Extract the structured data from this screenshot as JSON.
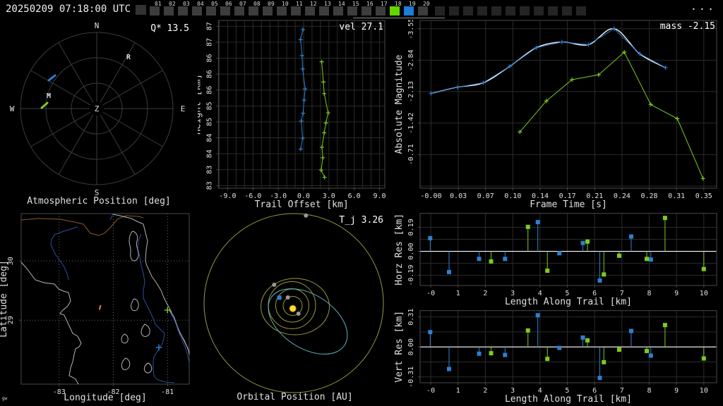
{
  "top_bar": {
    "clock": "20250209 07:18:00 UTC",
    "menu_label": "...",
    "leading_blank_squares": 1,
    "trailing_blank_squares": 11,
    "frames": [
      {
        "label": "01",
        "state": "off"
      },
      {
        "label": "02",
        "state": "off"
      },
      {
        "label": "03",
        "state": "off"
      },
      {
        "label": "04",
        "state": "off"
      },
      {
        "label": "05",
        "state": "off"
      },
      {
        "label": "06",
        "state": "off"
      },
      {
        "label": "07",
        "state": "off"
      },
      {
        "label": "08",
        "state": "off"
      },
      {
        "label": "09",
        "state": "off"
      },
      {
        "label": "10",
        "state": "off"
      },
      {
        "label": "11",
        "state": "off"
      },
      {
        "label": "12",
        "state": "off"
      },
      {
        "label": "13",
        "state": "off"
      },
      {
        "label": "14",
        "state": "off"
      },
      {
        "label": "15",
        "state": "off"
      },
      {
        "label": "16",
        "state": "off"
      },
      {
        "label": "17",
        "state": "off"
      },
      {
        "label": "18",
        "state": "green"
      },
      {
        "label": "19",
        "state": "blue"
      },
      {
        "label": "20",
        "state": "off"
      }
    ]
  },
  "colors": {
    "blue": "#2E7FD0",
    "green": "#7CCB1F",
    "white": "#FFFFFF",
    "gray_dot": "#999999",
    "frame": "#4a4a4a",
    "grid": "#2b2b2b",
    "grid_dotted": "#6a6a6a",
    "text": "#e0e0e0",
    "olive": "#9A9A3C",
    "cyan": "#5FB4C4",
    "sun": "#FFDD33",
    "coast": "#b4b4b4",
    "river": "#2D4FA0",
    "border_brown": "#8a5a28",
    "orange": "#F08040",
    "zero_line": "#FFFFFF"
  },
  "chart_data": [
    {
      "id": "atmospheric-position",
      "type": "scatter",
      "title": "Q* 13.5",
      "caption": "Atmospheric Position [deg]",
      "compass": {
        "n": "N",
        "e": "E",
        "s": "S",
        "w": "W",
        "center": "Z"
      },
      "rings": 3,
      "spokes": 12,
      "point_labels": [
        {
          "text": "R",
          "x": 182,
          "y": 56
        },
        {
          "text": "M",
          "x": 69,
          "y": 111
        }
      ],
      "tracks": [
        {
          "name": "station-track-blue",
          "color": "blue",
          "x1": 69,
          "y1": 86,
          "x2": 78,
          "y2": 79
        },
        {
          "name": "station-track-green",
          "color": "green",
          "x1": 59,
          "y1": 125,
          "x2": 67,
          "y2": 118
        }
      ]
    },
    {
      "id": "trail-offset",
      "type": "line",
      "title": "vel 27.1",
      "xlabel": "Trail Offset [km]",
      "ylabel": "Height [km]",
      "xlim": [
        -10.1,
        9.63
      ],
      "ylim": [
        87.46,
        82.83
      ],
      "minor_x_step": 1,
      "xticks": [
        -9,
        -6,
        -3,
        0,
        3,
        6,
        9
      ],
      "xtick_labels": [
        "-9.0",
        "-6.0",
        "-3.0",
        "0.0",
        "3.0",
        "6.0",
        "9.0"
      ],
      "ytick_vals": [
        87.3,
        86.86,
        86.42,
        85.98,
        85.54,
        85.1,
        84.66,
        84.22,
        83.78,
        83.34,
        82.9
      ],
      "ytick_labels": [
        "87",
        "87",
        "86",
        "86",
        "86",
        "85",
        "85",
        "84",
        "84",
        "83",
        "83"
      ],
      "series": [
        {
          "name": "site-1",
          "color": "blue",
          "marker": "plus",
          "points": [
            [
              -0.08,
              87.21
            ],
            [
              -0.36,
              86.93
            ],
            [
              -0.19,
              86.49
            ],
            [
              -0.11,
              86.12
            ],
            [
              0.19,
              85.57
            ],
            [
              0.06,
              85.26
            ],
            [
              -0.06,
              84.9
            ],
            [
              -0.28,
              84.68
            ],
            [
              -0.11,
              84.21
            ],
            [
              -0.34,
              83.91
            ]
          ]
        },
        {
          "name": "site-2",
          "color": "green",
          "marker": "plus",
          "points": [
            [
              2.15,
              86.32
            ],
            [
              2.35,
              85.76
            ],
            [
              2.45,
              85.44
            ],
            [
              2.91,
              84.91
            ],
            [
              2.65,
              84.63
            ],
            [
              2.45,
              84.36
            ],
            [
              2.18,
              83.96
            ],
            [
              2.29,
              83.67
            ],
            [
              2.09,
              83.33
            ],
            [
              2.49,
              83.13
            ]
          ]
        }
      ]
    },
    {
      "id": "light-curve",
      "type": "line",
      "title": "mass -2.15",
      "xlabel": "Frame Time [s]",
      "ylabel": "Absolute Magnitude",
      "xlim": [
        -0.014,
        0.3665
      ],
      "ylim": [
        -3.736,
        0.048
      ],
      "xticks": [
        0,
        0.035,
        0.07,
        0.105,
        0.14,
        0.175,
        0.21,
        0.245,
        0.28,
        0.315,
        0.35
      ],
      "xtick_labels": [
        "-0.00",
        "0.03",
        "0.07",
        "0.10",
        "0.14",
        "0.17",
        "0.21",
        "0.24",
        "0.28",
        "0.31",
        "0.35"
      ],
      "ytick_vals": [
        -3.55,
        -2.84,
        -2.13,
        -1.42,
        -0.71
      ],
      "ytick_labels": [
        "-3.55",
        "-2.84",
        "-2.13",
        "-1.42",
        "-0.71"
      ],
      "extra_ygrid": [
        0.0
      ],
      "series": [
        {
          "name": "site-1-smoothed",
          "color": "white",
          "marker": "none",
          "smooth": true,
          "points": [
            [
              0.0,
              -2.09
            ],
            [
              0.034,
              -2.23
            ],
            [
              0.067,
              -2.33
            ],
            [
              0.101,
              -2.7
            ],
            [
              0.135,
              -3.12
            ],
            [
              0.168,
              -3.25
            ],
            [
              0.202,
              -3.19
            ],
            [
              0.235,
              -3.55
            ],
            [
              0.268,
              -2.98
            ],
            [
              0.301,
              -2.67
            ]
          ]
        },
        {
          "name": "site-1",
          "color": "blue",
          "marker": "plus",
          "points": [
            [
              0.0,
              -2.09
            ],
            [
              0.034,
              -2.23
            ],
            [
              0.067,
              -2.33
            ],
            [
              0.101,
              -2.7
            ],
            [
              0.135,
              -3.12
            ],
            [
              0.168,
              -3.25
            ],
            [
              0.202,
              -3.19
            ],
            [
              0.235,
              -3.55
            ],
            [
              0.268,
              -2.98
            ],
            [
              0.301,
              -2.67
            ]
          ]
        },
        {
          "name": "site-2",
          "color": "green",
          "marker": "plus",
          "points": [
            [
              0.114,
              -1.22
            ],
            [
              0.148,
              -1.92
            ],
            [
              0.181,
              -2.4
            ],
            [
              0.215,
              -2.51
            ],
            [
              0.248,
              -3.02
            ],
            [
              0.282,
              -1.84
            ],
            [
              0.316,
              -1.52
            ],
            [
              0.349,
              -0.17
            ]
          ]
        }
      ]
    },
    {
      "id": "ground-map",
      "type": "scatter",
      "xlabel": "Longitude [deg]",
      "ylabel": "Latitude [deg]",
      "xlim": [
        -83.7,
        -80.6
      ],
      "ylim": [
        30.8,
        27.92
      ],
      "xticks": [
        -83,
        -82,
        -81
      ],
      "xtick_labels": [
        "-83",
        "-82",
        "-81"
      ],
      "ytick_vals": [
        30,
        29
      ],
      "ytick_labels": [
        "30",
        "29"
      ],
      "watermark": "gw",
      "markers": [
        {
          "name": "station-marker-green",
          "shape": "plus",
          "color": "green",
          "lon": -81.0,
          "lat": 29.17
        },
        {
          "name": "station-marker-blue",
          "shape": "plus",
          "color": "blue",
          "lon": -81.16,
          "lat": 28.54
        }
      ],
      "ground_track": {
        "color": "orange",
        "from": [
          -82.235,
          29.253
        ],
        "to": [
          -82.257,
          29.175
        ]
      }
    },
    {
      "id": "orbital-position",
      "type": "scatter",
      "title": "T_j 3.26",
      "caption": "Orbital Position [AU]",
      "sun": {
        "x": 134.7,
        "y": 137.7
      },
      "orbits": [
        {
          "name": "mercury-orbit",
          "cx": 134.5,
          "cy": 134,
          "rx": 13.5,
          "ry": 13.5
        },
        {
          "name": "venus-orbit",
          "cx": 134,
          "cy": 133.5,
          "rx": 23.5,
          "ry": 23.5
        },
        {
          "name": "earth-orbit",
          "cx": 133.5,
          "cy": 133,
          "rx": 33.5,
          "ry": 33.5
        },
        {
          "name": "mars-orbit",
          "cx": 138,
          "cy": 135,
          "rx": 48.5,
          "ry": 40
        },
        {
          "name": "jupiter-orbit",
          "cx": 136,
          "cy": 130,
          "rx": 127,
          "ry": 127
        }
      ],
      "meteoroid_orbit": {
        "cx": 156,
        "cy": 156,
        "rx": 62,
        "ry": 38,
        "rot": 33
      },
      "bodies": [
        {
          "name": "earth",
          "color": "blue",
          "shape": "square",
          "x": 115.7,
          "y": 122.3
        },
        {
          "name": "venus",
          "color": "gray",
          "shape": "dot",
          "x": 127.7,
          "y": 122
        },
        {
          "name": "mercury",
          "color": "gray",
          "shape": "dot",
          "x": 142.7,
          "y": 145
        },
        {
          "name": "mars",
          "color": "gray",
          "shape": "dot",
          "x": 108.3,
          "y": 104
        },
        {
          "name": "jupiter",
          "color": "gray",
          "shape": "dot",
          "x": 153.3,
          "y": 5.7
        }
      ]
    },
    {
      "id": "horz-res",
      "type": "scatter",
      "subtype": "stem",
      "xlabel": "Length Along Trail [km]",
      "ylabel": "Horz Res [km]",
      "xlim": [
        -0.39,
        10.47
      ],
      "ylim": [
        0.3,
        -0.27
      ],
      "xticks": [
        0,
        1,
        2,
        3,
        4,
        5,
        6,
        7,
        8,
        9,
        10
      ],
      "xtick_labels": [
        "-0",
        "1",
        "2",
        "3",
        "4",
        "5",
        "6",
        "7",
        "8",
        "9",
        "10"
      ],
      "ytick_vals": [
        0.19,
        0,
        -0.19
      ],
      "ytick_labels": [
        "0.19",
        "0.00",
        "-0.19"
      ],
      "minor_ygrid": [
        0.095,
        -0.095
      ],
      "series": [
        {
          "name": "site-1",
          "color": "blue",
          "points": [
            [
              -0.02,
              0.104
            ],
            [
              0.67,
              -0.164
            ],
            [
              1.77,
              -0.06
            ],
            [
              2.72,
              -0.06
            ],
            [
              3.92,
              0.231
            ],
            [
              4.71,
              -0.015
            ],
            [
              5.57,
              0.066
            ],
            [
              6.19,
              -0.231
            ],
            [
              7.34,
              0.117
            ],
            [
              8.06,
              -0.065
            ]
          ]
        },
        {
          "name": "site-2",
          "color": "green",
          "points": [
            [
              2.21,
              -0.08
            ],
            [
              3.56,
              0.193
            ],
            [
              4.27,
              -0.153
            ],
            [
              5.74,
              0.077
            ],
            [
              6.34,
              -0.183
            ],
            [
              6.9,
              -0.035
            ],
            [
              7.91,
              -0.06
            ],
            [
              8.58,
              0.264
            ],
            [
              10.0,
              -0.14
            ]
          ]
        }
      ]
    },
    {
      "id": "vert-res",
      "type": "scatter",
      "subtype": "stem",
      "xlabel": "Length Along Trail [km]",
      "ylabel": "Vert Res [km]",
      "xlim": [
        -0.39,
        10.47
      ],
      "ylim": [
        0.375,
        -0.37
      ],
      "xticks": [
        0,
        1,
        2,
        3,
        4,
        5,
        6,
        7,
        8,
        9,
        10
      ],
      "xtick_labels": [
        "-0",
        "1",
        "2",
        "3",
        "4",
        "5",
        "6",
        "7",
        "8",
        "9",
        "10"
      ],
      "ytick_vals": [
        0.31,
        0,
        -0.31
      ],
      "ytick_labels": [
        "0.31",
        "0.00",
        "-0.31"
      ],
      "minor_ygrid": [
        0.155,
        -0.155
      ],
      "series": [
        {
          "name": "site-1",
          "color": "blue",
          "points": [
            [
              -0.02,
              0.153
            ],
            [
              0.67,
              -0.228
            ],
            [
              1.77,
              -0.07
            ],
            [
              2.72,
              -0.083
            ],
            [
              3.92,
              0.327
            ],
            [
              4.71,
              -0.01
            ],
            [
              5.57,
              0.097
            ],
            [
              6.19,
              -0.32
            ],
            [
              7.34,
              0.165
            ],
            [
              8.06,
              -0.09
            ]
          ]
        },
        {
          "name": "site-2",
          "color": "green",
          "points": [
            [
              2.21,
              -0.065
            ],
            [
              3.56,
              0.17
            ],
            [
              4.27,
              -0.124
            ],
            [
              5.74,
              0.068
            ],
            [
              6.34,
              -0.158
            ],
            [
              6.9,
              -0.029
            ],
            [
              7.91,
              -0.042
            ],
            [
              8.58,
              0.226
            ],
            [
              10.0,
              -0.119
            ]
          ]
        }
      ]
    }
  ]
}
